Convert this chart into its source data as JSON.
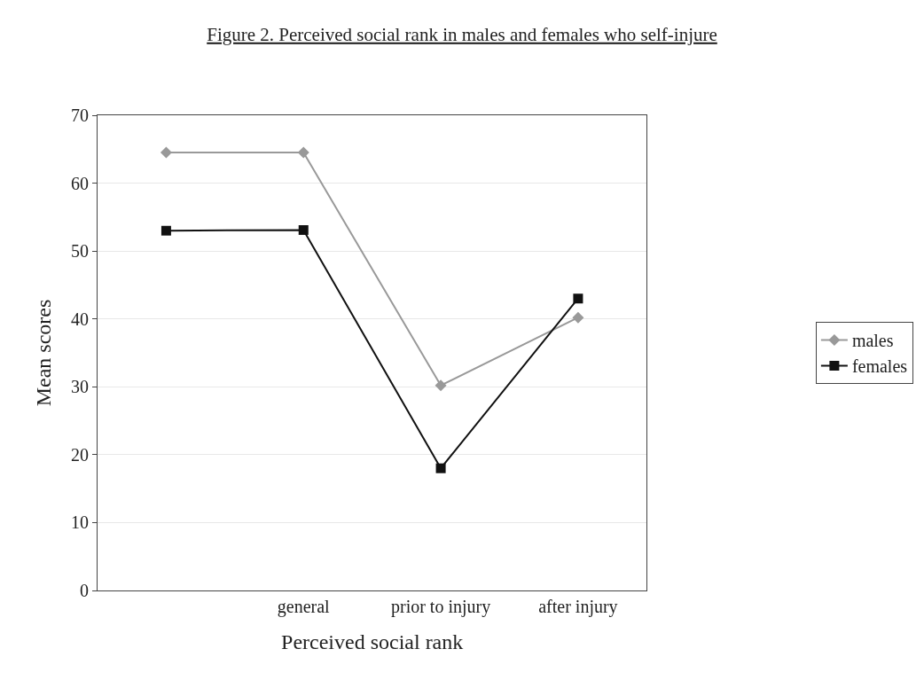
{
  "chart_data": {
    "type": "line",
    "title": "Figure 2. Perceived social rank in males and females who self-injure",
    "xlabel": "Perceived social rank",
    "ylabel": "Mean scores",
    "categories": [
      null,
      "general",
      "prior to injury",
      "after injury"
    ],
    "series": [
      {
        "name": "males",
        "color": "#999999",
        "marker": "diamond",
        "values": [
          64.5,
          64.5,
          30.2,
          40.2
        ]
      },
      {
        "name": "females",
        "color": "#111111",
        "marker": "square",
        "values": [
          53,
          53.1,
          18,
          43
        ]
      }
    ],
    "ylim": [
      0,
      70
    ],
    "yticks": [
      0,
      10,
      20,
      30,
      40,
      50,
      60,
      70
    ],
    "grid": "y",
    "legend": "right",
    "line_style": "solid"
  }
}
